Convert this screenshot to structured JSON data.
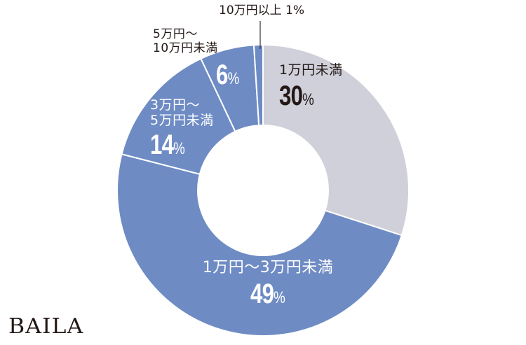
{
  "chart_data": {
    "type": "pie",
    "variant": "donut",
    "title": "",
    "unit": "%",
    "start_angle_deg": 0,
    "direction": "clockwise",
    "slices": [
      {
        "label": "1万円未満",
        "value": 30,
        "color": "#cfd0d9"
      },
      {
        "label": "1万円〜3万円未満",
        "value": 49,
        "color": "#6e8bc4"
      },
      {
        "label": "3万円〜5万円未満",
        "value": 14,
        "color": "#6e8bc4"
      },
      {
        "label": "5万円〜10万円未満",
        "value": 6,
        "color": "#6e8bc4"
      },
      {
        "label": "10万円以上",
        "value": 1,
        "color": "#6e8bc4"
      }
    ],
    "legend": "none (inline labels)",
    "grid": false
  },
  "labels": {
    "under10k": {
      "cat": "1万円未満",
      "num": "30",
      "pct": "%"
    },
    "r10k_30k": {
      "cat": "1万円〜3万円未満",
      "num": "49",
      "pct": "%"
    },
    "r30k_50k": {
      "cat1": "3万円〜",
      "cat2": "5万円未満",
      "num": "14",
      "pct": "%"
    },
    "r50k_100k": {
      "cat1": "5万円〜",
      "cat2": "10万円未満",
      "num": "6",
      "pct": "%"
    },
    "over100k": {
      "text": "10万円以上 1%"
    }
  },
  "brand": {
    "logo": "BAILA"
  },
  "colors": {
    "gray": "#cfd0d9",
    "blue": "#6e8bc4",
    "text_dark": "#231815",
    "separator": "#ffffff"
  }
}
